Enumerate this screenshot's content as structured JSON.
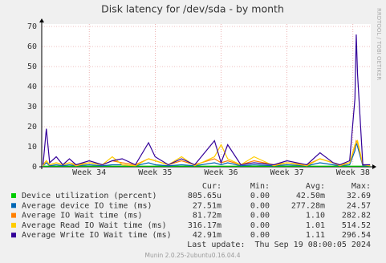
{
  "chart_data": {
    "type": "line",
    "title": "Disk latency for /dev/sda - by month",
    "side_label": "RRDTOOL / TOBI OETIKER",
    "xlim": [
      33.28,
      38.27
    ],
    "xticks": [
      {
        "value": 34,
        "label": "Week 34"
      },
      {
        "value": 35,
        "label": "Week 35"
      },
      {
        "value": 36,
        "label": "Week 36"
      },
      {
        "value": 37,
        "label": "Week 37"
      },
      {
        "value": 38,
        "label": "Week 38"
      }
    ],
    "ylim": [
      0,
      70
    ],
    "yticks": [
      0,
      10,
      20,
      30,
      40,
      50,
      60,
      70
    ],
    "grid": true,
    "x": [
      33.3,
      33.35,
      33.4,
      33.5,
      33.6,
      33.7,
      33.8,
      34.0,
      34.2,
      34.35,
      34.5,
      34.7,
      34.9,
      35.0,
      35.2,
      35.4,
      35.6,
      35.9,
      36.0,
      36.1,
      36.3,
      36.5,
      36.8,
      37.0,
      37.3,
      37.5,
      37.7,
      37.8,
      37.95,
      38.03,
      38.05,
      38.07,
      38.15,
      38.26
    ],
    "series": [
      {
        "name": "Device utilization (percent)",
        "color": "#00cc00",
        "values": [
          0.3,
          0.3,
          0.3,
          0.3,
          0.3,
          0.3,
          0.3,
          0.3,
          0.3,
          0.3,
          0.3,
          0.3,
          0.3,
          0.3,
          0.3,
          0.3,
          0.3,
          0.3,
          0.3,
          0.3,
          0.3,
          0.3,
          0.3,
          0.3,
          0.3,
          0.3,
          0.3,
          0.3,
          0.3,
          0.3,
          0.3,
          0.3,
          0.3,
          0.3
        ]
      },
      {
        "name": "Average device IO time (ms)",
        "color": "#0066b3",
        "values": [
          0.5,
          2,
          0.5,
          1,
          0.5,
          1,
          0.5,
          1,
          0.5,
          1,
          1,
          0.5,
          2,
          1,
          0.5,
          1,
          0.5,
          2,
          1,
          2,
          0.5,
          1,
          0.5,
          1,
          0.5,
          2,
          1,
          0.5,
          1,
          8,
          12,
          10,
          0.5,
          0.5
        ]
      },
      {
        "name": "Average IO Wait time (ms)",
        "color": "#ff8000",
        "values": [
          1,
          3,
          1,
          2,
          1,
          2,
          1,
          2,
          1,
          3,
          2,
          1,
          4,
          3,
          1,
          3,
          1,
          4,
          2,
          3,
          1,
          3,
          1,
          2,
          1,
          4,
          2,
          1,
          2,
          10,
          13,
          12,
          1,
          1
        ]
      },
      {
        "name": "Average Read IO Wait time (ms)",
        "color": "#ffcc00",
        "values": [
          0.5,
          3,
          1,
          2,
          1,
          2,
          0.5,
          2,
          1,
          5,
          1,
          0.5,
          4,
          3,
          1,
          5,
          0.5,
          5,
          11,
          4,
          1,
          5,
          0.5,
          2,
          0.5,
          4,
          2,
          0.5,
          2,
          11,
          12,
          13,
          1,
          0.5
        ]
      },
      {
        "name": "Average Write IO Wait time (ms)",
        "color": "#330099",
        "values": [
          1,
          19,
          2,
          5,
          1,
          4,
          1,
          3,
          1,
          3,
          4,
          1,
          12,
          5,
          1,
          4,
          1,
          13,
          2,
          11,
          1,
          2,
          1,
          3,
          1,
          7,
          2,
          1,
          3,
          34,
          66,
          46,
          1,
          1
        ]
      }
    ],
    "stats": {
      "headers": [
        "Cur:",
        "Min:",
        "Avg:",
        "Max:"
      ],
      "rows": [
        [
          "805.65u",
          "0.00",
          "42.50m",
          "32.69"
        ],
        [
          "27.51m",
          "0.00",
          "277.28m",
          "24.57"
        ],
        [
          "81.72m",
          "0.00",
          "1.10",
          "282.82"
        ],
        [
          "316.17m",
          "0.00",
          "1.01",
          "514.52"
        ],
        [
          "42.91m",
          "0.00",
          "1.11",
          "296.54"
        ]
      ]
    },
    "last_update": "Last update:  Thu Sep 19 08:00:05 2024",
    "footer": "Munin 2.0.25-2ubuntu0.16.04.4"
  }
}
